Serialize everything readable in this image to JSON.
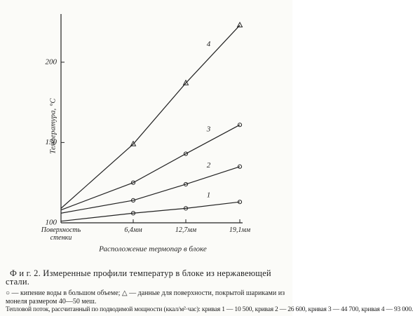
{
  "chart_data": {
    "type": "line",
    "y_label": "Температура, °С",
    "x_label": "Расположение термопар в блоке",
    "categories": [
      "Поверхность стенки",
      "6,4мм",
      "12,7мм",
      "19,1мм"
    ],
    "ylim": [
      100,
      230
    ],
    "yticks": [
      100,
      150,
      200
    ],
    "grid": false,
    "series": [
      {
        "name": "4",
        "color": "#222",
        "marker": "triangle",
        "values": [
          109,
          149,
          187,
          223
        ]
      },
      {
        "name": "3",
        "color": "#222",
        "marker": "circle",
        "values": [
          108,
          125,
          143,
          161
        ]
      },
      {
        "name": "2",
        "color": "#222",
        "marker": "circle",
        "values": [
          106,
          114,
          124,
          135
        ]
      },
      {
        "name": "1",
        "color": "#222",
        "marker": "circle",
        "values": [
          101,
          106,
          109,
          113
        ]
      }
    ]
  },
  "caption": {
    "title": "Ф и г.  2. Измеренные профили температур в блоке из нержавеющей стали.",
    "legend": "○ — кипение воды в большом объеме; △ — данные для поверхности, покрытой шариками из монеля размером 40—50 меш.",
    "heat_flux": "Тепловой поток, рассчитанный по подводимой мощности (ккал/м²·час): кривая 1 — 10 500, кривая 2 — 26 600, кривая 3 — 44 700, кривая 4 — 93 000."
  }
}
